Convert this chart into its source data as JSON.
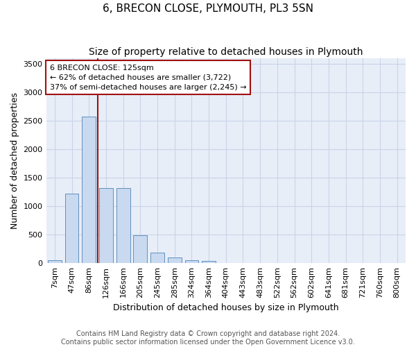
{
  "title": "6, BRECON CLOSE, PLYMOUTH, PL3 5SN",
  "subtitle": "Size of property relative to detached houses in Plymouth",
  "xlabel": "Distribution of detached houses by size in Plymouth",
  "ylabel": "Number of detached properties",
  "categories": [
    "7sqm",
    "47sqm",
    "86sqm",
    "126sqm",
    "166sqm",
    "205sqm",
    "245sqm",
    "285sqm",
    "324sqm",
    "364sqm",
    "404sqm",
    "443sqm",
    "483sqm",
    "522sqm",
    "562sqm",
    "602sqm",
    "641sqm",
    "681sqm",
    "721sqm",
    "760sqm",
    "800sqm"
  ],
  "values": [
    50,
    1220,
    2570,
    1320,
    1320,
    490,
    185,
    100,
    50,
    30,
    0,
    0,
    0,
    0,
    0,
    0,
    0,
    0,
    0,
    0,
    0
  ],
  "bar_color": "#c9d9ef",
  "bar_edge_color": "#6090c0",
  "grid_color": "#c8d4e8",
  "background_color": "#e8eef8",
  "vline_color": "#a01010",
  "annotation_text": "6 BRECON CLOSE: 125sqm\n← 62% of detached houses are smaller (3,722)\n37% of semi-detached houses are larger (2,245) →",
  "annotation_box_facecolor": "white",
  "annotation_box_edgecolor": "#a01010",
  "ylim": [
    0,
    3600
  ],
  "yticks": [
    0,
    500,
    1000,
    1500,
    2000,
    2500,
    3000,
    3500
  ],
  "footer": "Contains HM Land Registry data © Crown copyright and database right 2024.\nContains public sector information licensed under the Open Government Licence v3.0.",
  "title_fontsize": 11,
  "subtitle_fontsize": 10,
  "axis_label_fontsize": 9,
  "tick_fontsize": 8,
  "footer_fontsize": 7,
  "annotation_fontsize": 8
}
